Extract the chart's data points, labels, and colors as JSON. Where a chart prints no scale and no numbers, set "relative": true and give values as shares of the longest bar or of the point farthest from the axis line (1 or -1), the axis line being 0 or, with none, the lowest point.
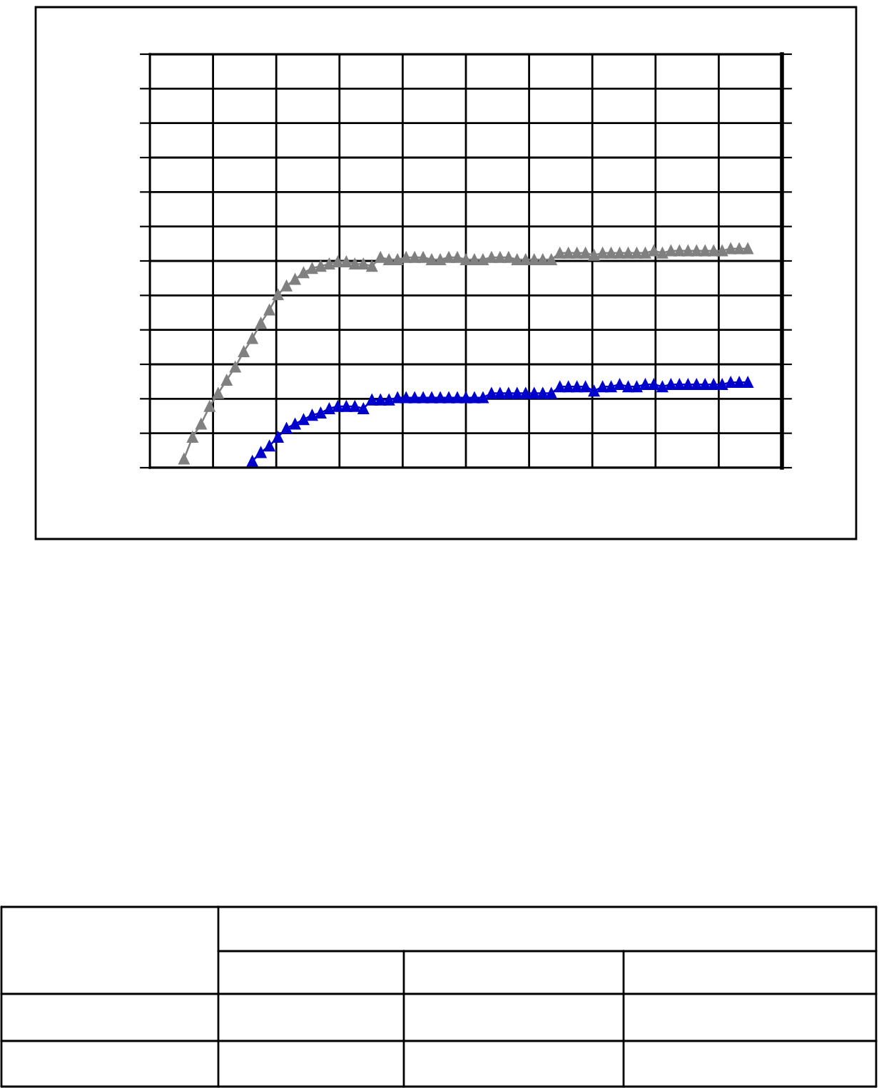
{
  "chart_data": {
    "type": "line",
    "relative": true,
    "marker": "triangle",
    "grid": true,
    "categories": [
      null,
      null,
      null,
      null,
      null,
      null,
      null,
      null,
      null,
      null,
      null,
      null,
      null,
      null,
      null,
      null,
      null,
      null,
      null,
      null,
      null,
      null,
      null,
      null,
      null,
      null,
      null,
      null,
      null,
      null,
      null,
      null,
      null,
      null,
      null,
      null,
      null,
      null,
      null,
      null,
      null,
      null,
      null,
      null,
      null,
      null,
      null,
      null,
      null,
      null,
      null,
      null,
      null,
      null,
      null,
      null,
      null,
      null,
      null,
      null,
      null,
      null,
      null,
      null,
      null,
      null,
      null
    ],
    "series": [
      {
        "color": "#808080",
        "values": [
          0.04,
          0.14,
          0.2,
          0.28,
          0.34,
          0.4,
          0.46,
          0.53,
          0.59,
          0.66,
          0.72,
          0.79,
          0.83,
          0.86,
          0.89,
          0.91,
          0.92,
          0.93,
          0.94,
          0.94,
          0.93,
          0.93,
          0.92,
          0.96,
          0.95,
          0.95,
          0.96,
          0.96,
          0.96,
          0.95,
          0.95,
          0.96,
          0.96,
          0.95,
          0.95,
          0.95,
          0.96,
          0.96,
          0.96,
          0.95,
          0.95,
          0.95,
          0.95,
          0.95,
          0.98,
          0.98,
          0.98,
          0.98,
          0.97,
          0.98,
          0.98,
          0.98,
          0.98,
          0.98,
          0.98,
          0.99,
          0.98,
          0.99,
          0.99,
          0.99,
          0.99,
          0.99,
          0.99,
          0.99,
          1.0,
          1.0,
          1.0
        ]
      },
      {
        "color": "#0000cc",
        "values": [
          null,
          null,
          null,
          null,
          null,
          null,
          null,
          null,
          0.03,
          0.07,
          0.1,
          0.14,
          0.18,
          0.2,
          0.22,
          0.24,
          0.25,
          0.27,
          0.28,
          0.28,
          0.28,
          0.27,
          0.31,
          0.31,
          0.31,
          0.32,
          0.32,
          0.32,
          0.32,
          0.32,
          0.32,
          0.32,
          0.32,
          0.32,
          0.32,
          0.32,
          0.34,
          0.34,
          0.34,
          0.34,
          0.34,
          0.34,
          0.34,
          0.34,
          0.37,
          0.37,
          0.37,
          0.37,
          0.35,
          0.37,
          0.37,
          0.38,
          0.37,
          0.37,
          0.38,
          0.38,
          0.37,
          0.38,
          0.38,
          0.38,
          0.38,
          0.38,
          0.38,
          0.38,
          0.39,
          0.39,
          0.39
        ]
      }
    ]
  }
}
